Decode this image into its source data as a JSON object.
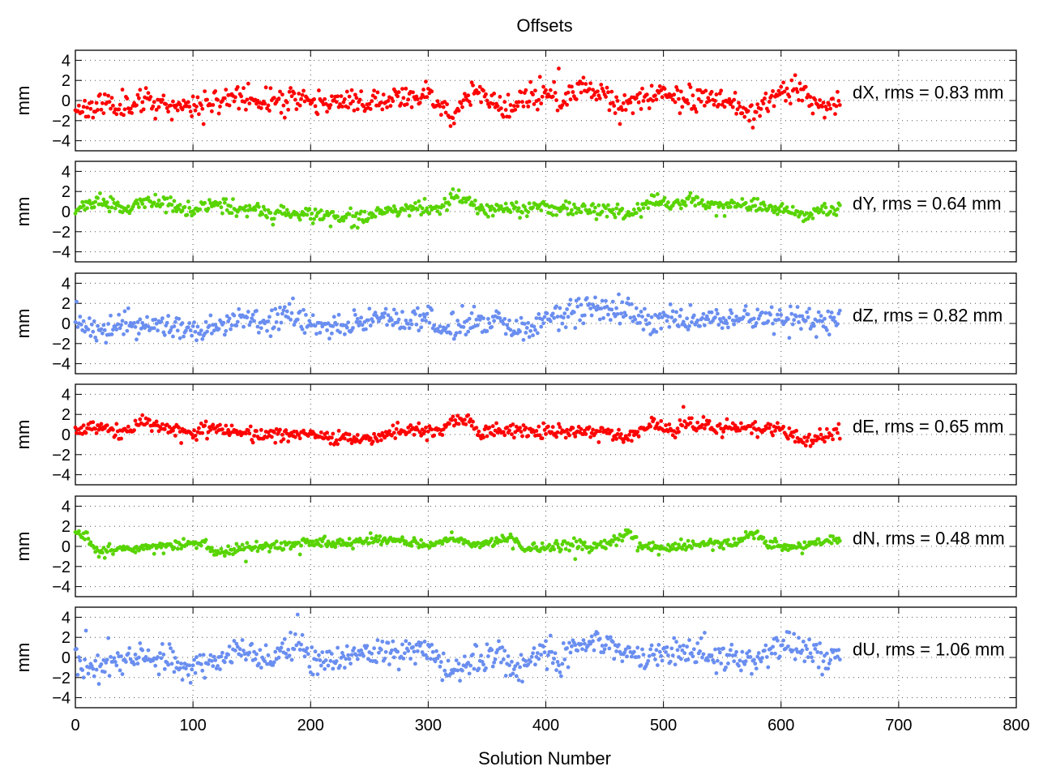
{
  "chart_data": {
    "type": "scatter",
    "title": "Offsets",
    "xlabel": "Solution Number",
    "xlim": [
      0,
      800
    ],
    "xticks": [
      0,
      100,
      200,
      300,
      400,
      500,
      600,
      700,
      800
    ],
    "grid": "dotted",
    "panels": [
      {
        "ylabel": "mm",
        "ylim": [
          -5,
          5
        ],
        "yticks": [
          -4,
          -2,
          0,
          2,
          4
        ],
        "series_label": "dX, rms = 0.83 mm",
        "color": "#ff0000",
        "trend": [
          [
            0,
            -0.8
          ],
          [
            20,
            -0.5
          ],
          [
            40,
            -0.3
          ],
          [
            60,
            -0.2
          ],
          [
            90,
            -0.5
          ],
          [
            100,
            -0.8
          ],
          [
            120,
            0.0
          ],
          [
            140,
            0.5
          ],
          [
            160,
            -0.2
          ],
          [
            180,
            0.0
          ],
          [
            190,
            0.5
          ],
          [
            200,
            -0.3
          ],
          [
            230,
            -0.2
          ],
          [
            260,
            0.0
          ],
          [
            280,
            0.3
          ],
          [
            300,
            0.5
          ],
          [
            310,
            -0.5
          ],
          [
            320,
            -1.5
          ],
          [
            330,
            0.0
          ],
          [
            340,
            1.0
          ],
          [
            355,
            0.0
          ],
          [
            365,
            -1.2
          ],
          [
            380,
            0.0
          ],
          [
            400,
            0.8
          ],
          [
            410,
            -0.3
          ],
          [
            430,
            1.3
          ],
          [
            450,
            1.0
          ],
          [
            460,
            -0.5
          ],
          [
            475,
            0.0
          ],
          [
            490,
            0.3
          ],
          [
            500,
            0.8
          ],
          [
            520,
            0.0
          ],
          [
            540,
            0.3
          ],
          [
            560,
            -0.2
          ],
          [
            575,
            -1.2
          ],
          [
            590,
            0.0
          ],
          [
            600,
            0.9
          ],
          [
            620,
            0.8
          ],
          [
            640,
            -0.5
          ],
          [
            650,
            0.4
          ]
        ],
        "spread": 0.6,
        "seed": 11
      },
      {
        "ylabel": "mm",
        "ylim": [
          -5,
          5
        ],
        "yticks": [
          -4,
          -2,
          0,
          2,
          4
        ],
        "series_label": "dY, rms = 0.64 mm",
        "color": "#58d400",
        "trend": [
          [
            0,
            0.2
          ],
          [
            10,
            0.5
          ],
          [
            20,
            1.0
          ],
          [
            40,
            0.3
          ],
          [
            60,
            1.2
          ],
          [
            80,
            0.6
          ],
          [
            100,
            0.0
          ],
          [
            120,
            1.0
          ],
          [
            130,
            0.4
          ],
          [
            160,
            0.0
          ],
          [
            200,
            -0.2
          ],
          [
            220,
            -0.5
          ],
          [
            250,
            -0.6
          ],
          [
            270,
            0.1
          ],
          [
            290,
            0.3
          ],
          [
            310,
            0.2
          ],
          [
            320,
            1.7
          ],
          [
            335,
            1.2
          ],
          [
            345,
            0.1
          ],
          [
            360,
            0.5
          ],
          [
            400,
            0.3
          ],
          [
            450,
            0.2
          ],
          [
            470,
            -0.3
          ],
          [
            490,
            0.8
          ],
          [
            500,
            0.9
          ],
          [
            510,
            0.5
          ],
          [
            520,
            1.3
          ],
          [
            540,
            0.5
          ],
          [
            570,
            0.6
          ],
          [
            600,
            0.4
          ],
          [
            620,
            -0.4
          ],
          [
            650,
            0.3
          ]
        ],
        "spread": 0.35,
        "seed": 23
      },
      {
        "ylabel": "mm",
        "ylim": [
          -5,
          5
        ],
        "yticks": [
          -4,
          -2,
          0,
          2,
          4
        ],
        "series_label": "dZ, rms = 0.82 mm",
        "color": "#6a8ef0",
        "trend": [
          [
            0,
            0.8
          ],
          [
            10,
            -0.4
          ],
          [
            20,
            -1.0
          ],
          [
            40,
            0.0
          ],
          [
            60,
            -0.3
          ],
          [
            80,
            -0.2
          ],
          [
            100,
            -0.8
          ],
          [
            120,
            -0.3
          ],
          [
            140,
            0.4
          ],
          [
            160,
            -0.2
          ],
          [
            180,
            1.0
          ],
          [
            200,
            -0.3
          ],
          [
            230,
            -0.2
          ],
          [
            250,
            0.6
          ],
          [
            270,
            0.3
          ],
          [
            300,
            0.5
          ],
          [
            310,
            -0.8
          ],
          [
            320,
            -0.3
          ],
          [
            340,
            0.2
          ],
          [
            360,
            0.3
          ],
          [
            370,
            -0.8
          ],
          [
            400,
            0.3
          ],
          [
            430,
            1.2
          ],
          [
            450,
            1.7
          ],
          [
            470,
            1.5
          ],
          [
            480,
            0.0
          ],
          [
            500,
            0.6
          ],
          [
            520,
            0.3
          ],
          [
            560,
            0.4
          ],
          [
            580,
            0.5
          ],
          [
            600,
            0.8
          ],
          [
            620,
            0.5
          ],
          [
            640,
            -0.3
          ],
          [
            650,
            0.7
          ]
        ],
        "spread": 0.6,
        "seed": 37
      },
      {
        "ylabel": "mm",
        "ylim": [
          -5,
          5
        ],
        "yticks": [
          -4,
          -2,
          0,
          2,
          4
        ],
        "series_label": "dE, rms = 0.65 mm",
        "color": "#ff0000",
        "trend": [
          [
            0,
            0.2
          ],
          [
            10,
            0.6
          ],
          [
            20,
            0.9
          ],
          [
            40,
            0.2
          ],
          [
            60,
            1.2
          ],
          [
            80,
            0.6
          ],
          [
            100,
            0.1
          ],
          [
            120,
            0.9
          ],
          [
            130,
            0.3
          ],
          [
            160,
            0.0
          ],
          [
            200,
            -0.1
          ],
          [
            220,
            -0.4
          ],
          [
            250,
            -0.5
          ],
          [
            270,
            0.3
          ],
          [
            290,
            0.4
          ],
          [
            310,
            0.2
          ],
          [
            320,
            1.7
          ],
          [
            335,
            1.3
          ],
          [
            345,
            0.1
          ],
          [
            360,
            0.6
          ],
          [
            400,
            0.3
          ],
          [
            450,
            0.3
          ],
          [
            470,
            -0.3
          ],
          [
            490,
            0.9
          ],
          [
            510,
            0.4
          ],
          [
            520,
            1.2
          ],
          [
            540,
            0.6
          ],
          [
            570,
            0.7
          ],
          [
            600,
            0.5
          ],
          [
            620,
            -0.6
          ],
          [
            650,
            0.2
          ]
        ],
        "spread": 0.35,
        "seed": 53
      },
      {
        "ylabel": "mm",
        "ylim": [
          -5,
          5
        ],
        "yticks": [
          -4,
          -2,
          0,
          2,
          4
        ],
        "series_label": "dN, rms = 0.48 mm",
        "color": "#58d400",
        "trend": [
          [
            0,
            1.5
          ],
          [
            10,
            0.8
          ],
          [
            20,
            -0.5
          ],
          [
            40,
            -0.2
          ],
          [
            60,
            -0.2
          ],
          [
            90,
            0.2
          ],
          [
            110,
            0.3
          ],
          [
            120,
            -0.7
          ],
          [
            140,
            -0.1
          ],
          [
            180,
            0.1
          ],
          [
            200,
            0.5
          ],
          [
            230,
            0.2
          ],
          [
            260,
            0.8
          ],
          [
            280,
            0.5
          ],
          [
            300,
            0.0
          ],
          [
            320,
            0.8
          ],
          [
            340,
            0.2
          ],
          [
            360,
            0.5
          ],
          [
            370,
            0.9
          ],
          [
            380,
            -0.3
          ],
          [
            420,
            0.2
          ],
          [
            440,
            0.0
          ],
          [
            460,
            0.5
          ],
          [
            470,
            1.2
          ],
          [
            480,
            0.0
          ],
          [
            500,
            -0.2
          ],
          [
            520,
            0.0
          ],
          [
            540,
            0.3
          ],
          [
            560,
            0.3
          ],
          [
            575,
            1.4
          ],
          [
            590,
            0.3
          ],
          [
            610,
            -0.3
          ],
          [
            630,
            0.5
          ],
          [
            650,
            0.4
          ]
        ],
        "spread": 0.25,
        "seed": 71
      },
      {
        "ylabel": "mm",
        "ylim": [
          -5,
          5
        ],
        "yticks": [
          -4,
          -2,
          0,
          2,
          4
        ],
        "series_label": "dU, rms = 1.06 mm",
        "color": "#6a8ef0",
        "trend": [
          [
            0,
            -0.2
          ],
          [
            15,
            -1.5
          ],
          [
            30,
            -0.5
          ],
          [
            50,
            0.0
          ],
          [
            70,
            -0.2
          ],
          [
            100,
            -1.0
          ],
          [
            120,
            -0.2
          ],
          [
            140,
            0.8
          ],
          [
            160,
            -0.5
          ],
          [
            180,
            0.5
          ],
          [
            190,
            1.5
          ],
          [
            200,
            0.0
          ],
          [
            220,
            -0.3
          ],
          [
            240,
            0.5
          ],
          [
            270,
            0.6
          ],
          [
            300,
            0.6
          ],
          [
            310,
            -0.6
          ],
          [
            320,
            -1.5
          ],
          [
            340,
            -0.3
          ],
          [
            360,
            0.5
          ],
          [
            370,
            -1.2
          ],
          [
            380,
            -0.5
          ],
          [
            400,
            1.0
          ],
          [
            410,
            -0.3
          ],
          [
            440,
            2.0
          ],
          [
            460,
            1.5
          ],
          [
            480,
            -0.5
          ],
          [
            500,
            0.7
          ],
          [
            520,
            0.5
          ],
          [
            560,
            0.0
          ],
          [
            580,
            -0.5
          ],
          [
            600,
            1.3
          ],
          [
            620,
            0.6
          ],
          [
            640,
            -0.5
          ],
          [
            650,
            0.8
          ]
        ],
        "spread": 0.7,
        "seed": 97
      }
    ]
  }
}
